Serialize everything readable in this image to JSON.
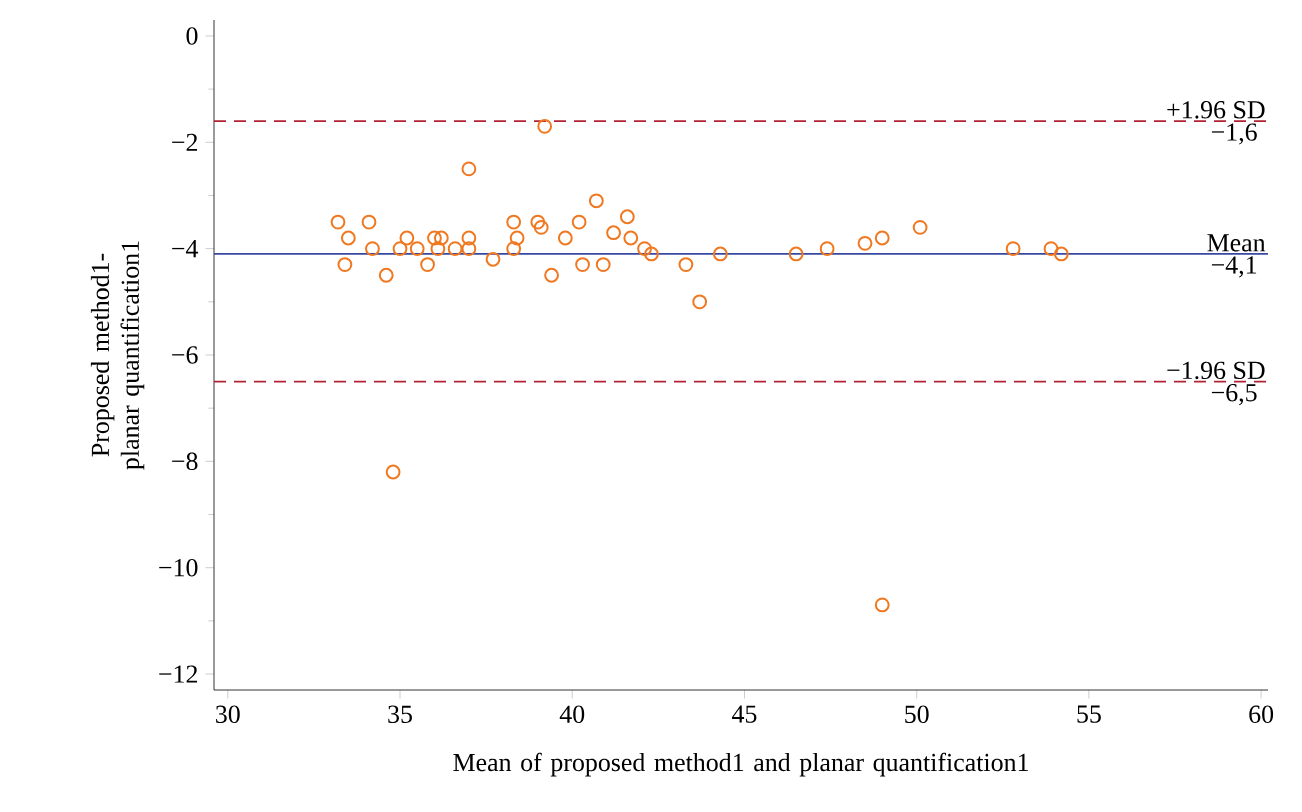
{
  "chart_data": {
    "type": "scatter",
    "xlabel": "Mean of proposed method1 and planar quantification1",
    "ylabel": "Proposed method1-planar quantification1",
    "xlim": [
      29.6,
      60.2
    ],
    "ylim": [
      -12.3,
      0.3
    ],
    "xticks": [
      30,
      35,
      40,
      45,
      50,
      55,
      60
    ],
    "yticks": [
      {
        "value": -12,
        "label": "−12"
      },
      {
        "value": -10,
        "label": "−10"
      },
      {
        "value": -8,
        "label": "−8"
      },
      {
        "value": -6,
        "label": "−6"
      },
      {
        "value": -4,
        "label": "−4"
      },
      {
        "value": -2,
        "label": "−2"
      },
      0
    ],
    "marker": "circle",
    "grid": false,
    "series": [
      {
        "color": "#f07820",
        "x": [
          33.2,
          33.4,
          33.5,
          34.1,
          34.2,
          34.6,
          34.8,
          35.0,
          35.2,
          35.5,
          35.8,
          36.0,
          36.1,
          36.2,
          36.6,
          37.0,
          37.0,
          37.0,
          37.7,
          38.3,
          38.4,
          38.3,
          39.0,
          39.1,
          39.2,
          39.4,
          39.8,
          40.2,
          40.3,
          40.7,
          40.9,
          41.2,
          41.6,
          41.7,
          42.1,
          42.3,
          43.3,
          43.7,
          44.3,
          46.5,
          47.4,
          48.5,
          49.0,
          49.0,
          50.1,
          52.8,
          53.9,
          54.2
        ],
        "values": [
          -3.5,
          -4.3,
          -3.8,
          -3.5,
          -4.0,
          -4.5,
          -8.2,
          -4.0,
          -3.8,
          -4.0,
          -4.3,
          -3.8,
          -4.0,
          -3.8,
          -4.0,
          -2.5,
          -3.8,
          -4.0,
          -4.2,
          -3.5,
          -3.8,
          -4.0,
          -3.5,
          -3.6,
          -1.7,
          -4.5,
          -3.8,
          -3.5,
          -4.3,
          -3.1,
          -4.3,
          -3.7,
          -3.4,
          -3.8,
          -4.0,
          -4.1,
          -4.3,
          -5.0,
          -4.1,
          -4.1,
          -4.0,
          -3.9,
          -3.8,
          -10.7,
          -3.6,
          -4.0,
          -4.0,
          -4.1
        ]
      }
    ],
    "ref_lines": [
      {
        "axis": "y",
        "value": -1.6,
        "label": "+1.96 SD",
        "color": "#b22234",
        "line_style": "dashed"
      },
      {
        "axis": "y",
        "value": -4.1,
        "label": "Mean",
        "color": "#3848a0",
        "line_style": "solid"
      },
      {
        "axis": "y",
        "value": -6.5,
        "label": "−1.96 SD",
        "color": "#b22234",
        "line_style": "dashed"
      }
    ],
    "annotations": [
      "−1,6",
      "−4,1",
      "−6,5"
    ]
  }
}
